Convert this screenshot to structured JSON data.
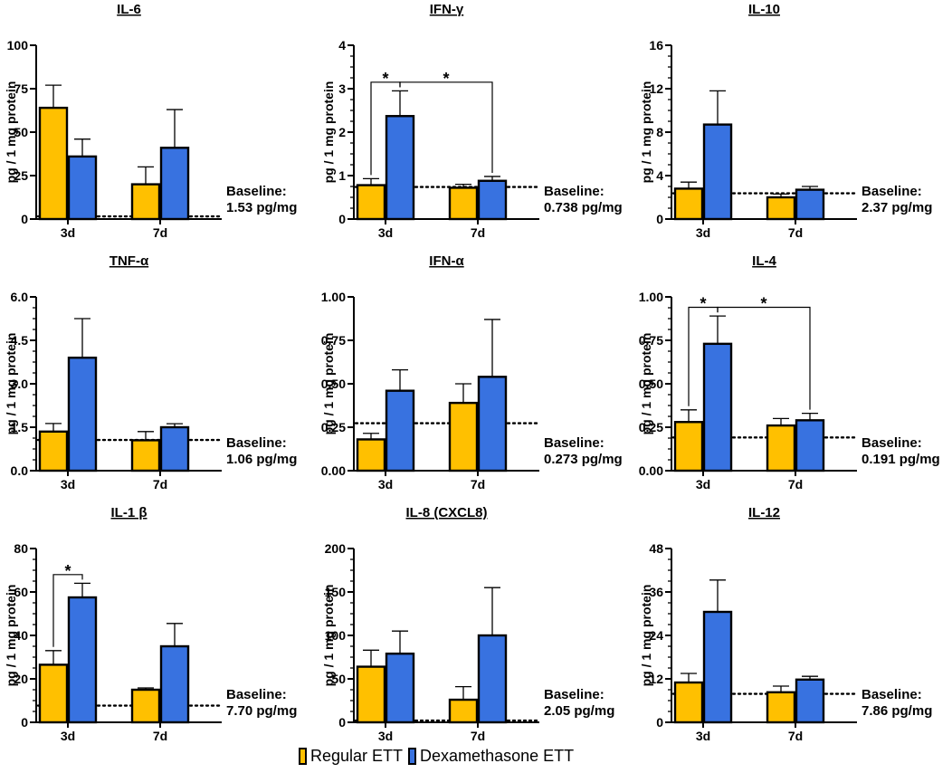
{
  "legend": {
    "regular_label": "Regular ETT",
    "dex_label": "Dexamethasone ETT",
    "regular_color": "#FFC000",
    "dex_color": "#3872E0"
  },
  "chart_data": [
    {
      "type": "bar",
      "title": "IL-6",
      "ylabel": "pg / 1 mg protein",
      "categories": [
        "3d",
        "7d"
      ],
      "ylim": [
        0,
        100
      ],
      "yticks": [
        "0",
        "25",
        "50",
        "75",
        "100"
      ],
      "ytick_values": [
        0,
        25,
        50,
        75,
        100
      ],
      "minor_ticks": false,
      "series": [
        {
          "name": "Regular ETT",
          "values": [
            64,
            20
          ],
          "errors": [
            13,
            10
          ]
        },
        {
          "name": "Dexamethasone ETT",
          "values": [
            36,
            41
          ],
          "errors": [
            10,
            22
          ]
        }
      ],
      "baseline_value": 1.53,
      "baseline_text": [
        "Baseline:",
        "1.53 pg/mg"
      ],
      "significance": []
    },
    {
      "type": "bar",
      "title": "IFN-γ",
      "ylabel": "pg / 1 mg protein",
      "categories": [
        "3d",
        "7d"
      ],
      "ylim": [
        0,
        4
      ],
      "yticks": [
        "0",
        "1",
        "2",
        "3",
        "4"
      ],
      "ytick_values": [
        0,
        1,
        2,
        3,
        4
      ],
      "minor_ticks": true,
      "series": [
        {
          "name": "Regular ETT",
          "values": [
            0.78,
            0.72
          ],
          "errors": [
            0.15,
            0.08
          ]
        },
        {
          "name": "Dexamethasone ETT",
          "values": [
            2.37,
            0.88
          ],
          "errors": [
            0.58,
            0.1
          ]
        }
      ],
      "baseline_value": 0.738,
      "baseline_text": [
        "Baseline:",
        "0.738 pg/mg"
      ],
      "significance": [
        {
          "from": [
            0,
            0
          ],
          "to": [
            0,
            1
          ],
          "label": "*",
          "y": 3.15
        },
        {
          "from": [
            0,
            1
          ],
          "to": [
            1,
            1
          ],
          "label": "*",
          "y": 3.15
        }
      ]
    },
    {
      "type": "bar",
      "title": "IL-10",
      "ylabel": "pg / 1 mg protein",
      "categories": [
        "3d",
        "7d"
      ],
      "ylim": [
        0,
        16
      ],
      "yticks": [
        "0",
        "4",
        "8",
        "12",
        "16"
      ],
      "ytick_values": [
        0,
        4,
        8,
        12,
        16
      ],
      "minor_ticks": true,
      "series": [
        {
          "name": "Regular ETT",
          "values": [
            2.8,
            2.0
          ],
          "errors": [
            0.6,
            0.3
          ]
        },
        {
          "name": "Dexamethasone ETT",
          "values": [
            8.7,
            2.7
          ],
          "errors": [
            3.1,
            0.3
          ]
        }
      ],
      "baseline_value": 2.37,
      "baseline_text": [
        "Baseline:",
        "2.37 pg/mg"
      ],
      "significance": []
    },
    {
      "type": "bar",
      "title": "TNF-α",
      "ylabel": "pg / 1 mg protein",
      "categories": [
        "3d",
        "7d"
      ],
      "ylim": [
        0,
        6
      ],
      "yticks": [
        "0.0",
        "1.5",
        "3.0",
        "4.5",
        "6.0"
      ],
      "ytick_values": [
        0,
        1.5,
        3,
        4.5,
        6
      ],
      "minor_ticks": true,
      "series": [
        {
          "name": "Regular ETT",
          "values": [
            1.35,
            1.05
          ],
          "errors": [
            0.28,
            0.3
          ]
        },
        {
          "name": "Dexamethasone ETT",
          "values": [
            3.9,
            1.5
          ],
          "errors": [
            1.35,
            0.12
          ]
        }
      ],
      "baseline_value": 1.06,
      "baseline_text": [
        "Baseline:",
        "1.06 pg/mg"
      ],
      "significance": []
    },
    {
      "type": "bar",
      "title": "IFN-α",
      "ylabel": "pg / 1 mg protein",
      "categories": [
        "3d",
        "7d"
      ],
      "ylim": [
        0,
        1
      ],
      "yticks": [
        "0.00",
        "0.25",
        "0.50",
        "0.75",
        "1.00"
      ],
      "ytick_values": [
        0,
        0.25,
        0.5,
        0.75,
        1
      ],
      "minor_ticks": false,
      "series": [
        {
          "name": "Regular ETT",
          "values": [
            0.18,
            0.39
          ],
          "errors": [
            0.035,
            0.11
          ]
        },
        {
          "name": "Dexamethasone ETT",
          "values": [
            0.46,
            0.54
          ],
          "errors": [
            0.12,
            0.33
          ]
        }
      ],
      "baseline_value": 0.273,
      "baseline_text": [
        "Baseline:",
        "0.273 pg/mg"
      ],
      "significance": []
    },
    {
      "type": "bar",
      "title": "IL-4",
      "ylabel": "pg / 1 mg protein",
      "categories": [
        "3d",
        "7d"
      ],
      "ylim": [
        0,
        1
      ],
      "yticks": [
        "0.00",
        "0.25",
        "0.50",
        "0.75",
        "1.00"
      ],
      "ytick_values": [
        0,
        0.25,
        0.5,
        0.75,
        1
      ],
      "minor_ticks": true,
      "series": [
        {
          "name": "Regular ETT",
          "values": [
            0.28,
            0.26
          ],
          "errors": [
            0.07,
            0.04
          ]
        },
        {
          "name": "Dexamethasone ETT",
          "values": [
            0.73,
            0.29
          ],
          "errors": [
            0.16,
            0.04
          ]
        }
      ],
      "baseline_value": 0.191,
      "baseline_text": [
        "Baseline:",
        "0.191 pg/mg"
      ],
      "significance": [
        {
          "from": [
            0,
            0
          ],
          "to": [
            0,
            1
          ],
          "label": "*",
          "y": 0.94
        },
        {
          "from": [
            0,
            1
          ],
          "to": [
            1,
            1
          ],
          "label": "*",
          "y": 0.94
        }
      ]
    },
    {
      "type": "bar",
      "title": "IL-1 β",
      "ylabel": "pg / 1 mg protein",
      "categories": [
        "3d",
        "7d"
      ],
      "ylim": [
        0,
        80
      ],
      "yticks": [
        "0",
        "20",
        "40",
        "60",
        "80"
      ],
      "ytick_values": [
        0,
        20,
        40,
        60,
        80
      ],
      "minor_ticks": true,
      "series": [
        {
          "name": "Regular ETT",
          "values": [
            26.5,
            15
          ],
          "errors": [
            6.5,
            0.8
          ]
        },
        {
          "name": "Dexamethasone ETT",
          "values": [
            57.5,
            35
          ],
          "errors": [
            6.5,
            10.5
          ]
        }
      ],
      "baseline_value": 7.7,
      "baseline_text": [
        "Baseline:",
        "7.70 pg/mg"
      ],
      "significance": [
        {
          "from": [
            0,
            0
          ],
          "to": [
            0,
            1
          ],
          "label": "*",
          "y": 68
        }
      ]
    },
    {
      "type": "bar",
      "title": "IL-8 (CXCL8)",
      "ylabel": "pg / 1 mg protein",
      "categories": [
        "3d",
        "7d"
      ],
      "ylim": [
        0,
        200
      ],
      "yticks": [
        "0",
        "50",
        "100",
        "150",
        "200"
      ],
      "ytick_values": [
        0,
        50,
        100,
        150,
        200
      ],
      "minor_ticks": true,
      "series": [
        {
          "name": "Regular ETT",
          "values": [
            64,
            26
          ],
          "errors": [
            19,
            15
          ]
        },
        {
          "name": "Dexamethasone ETT",
          "values": [
            79,
            100
          ],
          "errors": [
            26,
            55
          ]
        }
      ],
      "baseline_value": 2.05,
      "baseline_text": [
        "Baseline:",
        "2.05 pg/mg"
      ],
      "significance": []
    },
    {
      "type": "bar",
      "title": "IL-12",
      "ylabel": "pg / 1 mg protein",
      "categories": [
        "3d",
        "7d"
      ],
      "ylim": [
        0,
        48
      ],
      "yticks": [
        "0",
        "12",
        "24",
        "36",
        "48"
      ],
      "ytick_values": [
        0,
        12,
        24,
        36,
        48
      ],
      "minor_ticks": true,
      "series": [
        {
          "name": "Regular ETT",
          "values": [
            11,
            8.3
          ],
          "errors": [
            2.5,
            1.7
          ]
        },
        {
          "name": "Dexamethasone ETT",
          "values": [
            30.5,
            11.8
          ],
          "errors": [
            8.8,
            0.9
          ]
        }
      ],
      "baseline_value": 7.86,
      "baseline_text": [
        "Baseline:",
        "7.86 pg/mg"
      ],
      "significance": []
    }
  ]
}
